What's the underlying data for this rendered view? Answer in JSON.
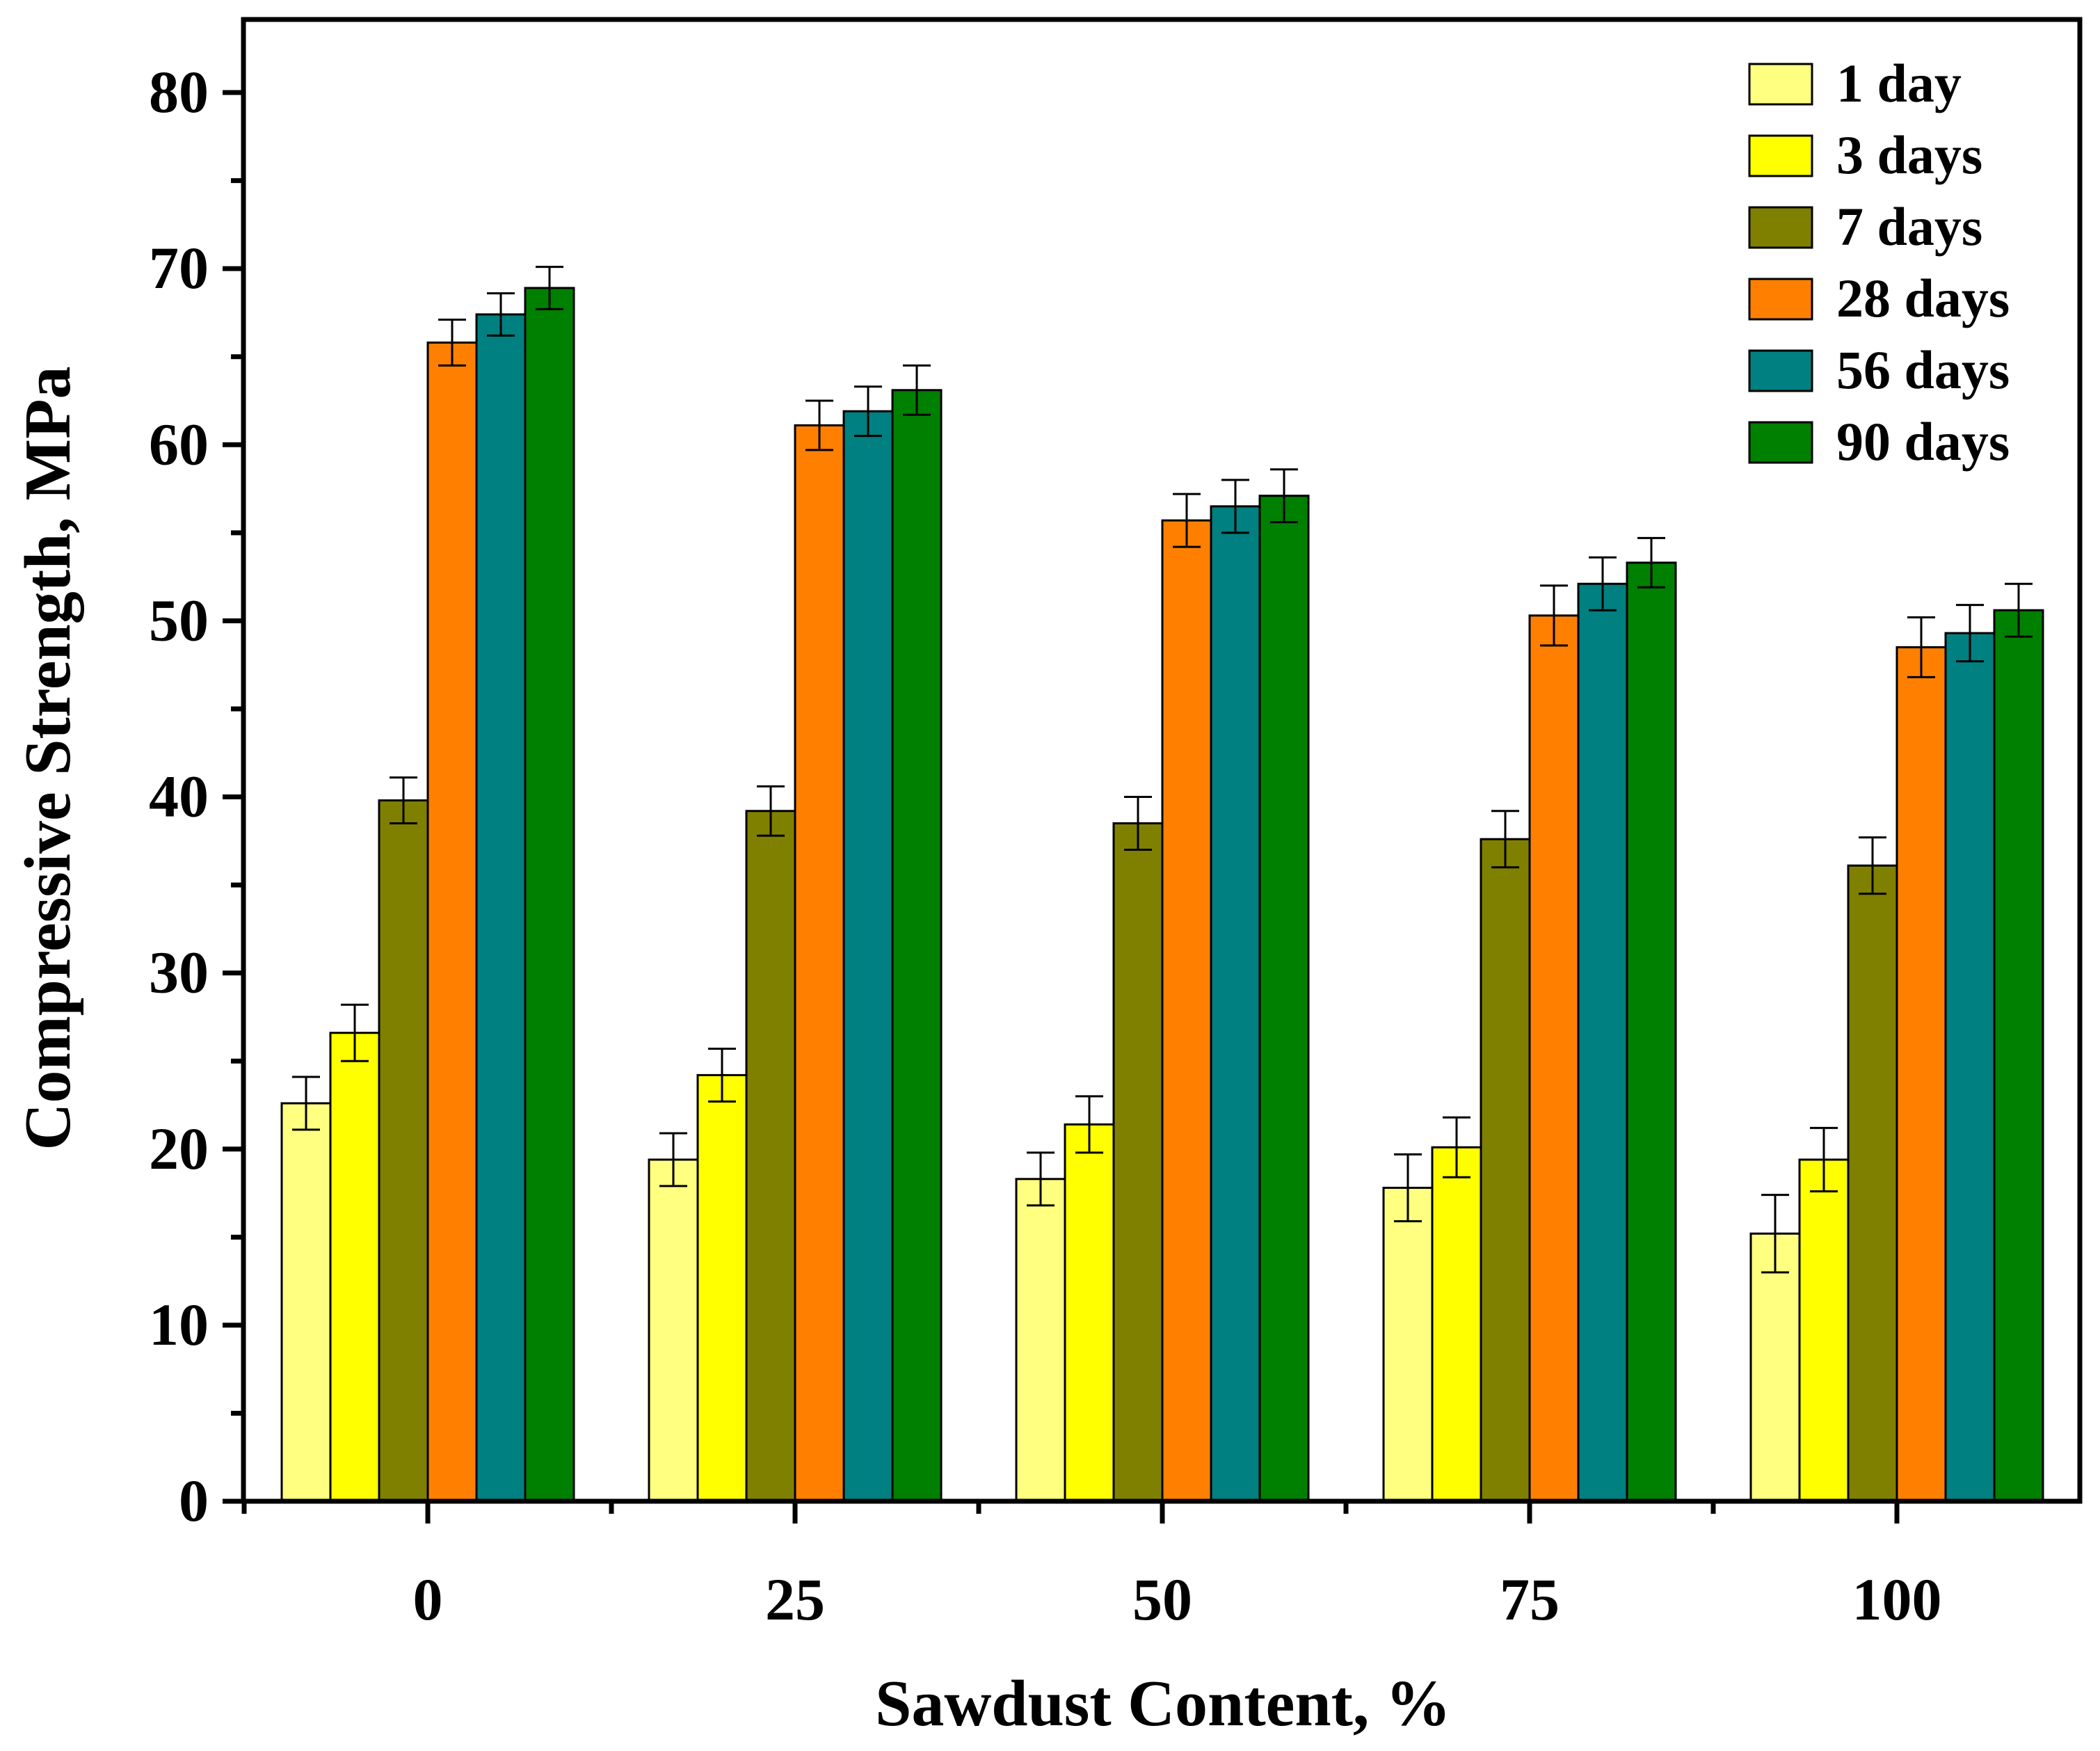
{
  "chart_data": {
    "type": "bar",
    "title": "",
    "xlabel": "Sawdust Content, %",
    "ylabel": "Compressive Strength, MPa",
    "categories": [
      "0",
      "25",
      "50",
      "75",
      "100"
    ],
    "ylim": [
      0,
      80
    ],
    "yticks": [
      0,
      10,
      20,
      30,
      40,
      50,
      60,
      70,
      80
    ],
    "grid": false,
    "legend_position": "top-right",
    "series": [
      {
        "name": "1 day",
        "color": "#FFFF80",
        "values": [
          22.6,
          19.4,
          18.3,
          17.8,
          15.2
        ],
        "errors": [
          1.5,
          1.5,
          1.5,
          1.9,
          2.2
        ]
      },
      {
        "name": "3 days",
        "color": "#FFFF00",
        "values": [
          26.6,
          24.2,
          21.4,
          20.1,
          19.4
        ],
        "errors": [
          1.6,
          1.5,
          1.6,
          1.7,
          1.8
        ]
      },
      {
        "name": "7 days",
        "color": "#808000",
        "values": [
          39.8,
          39.2,
          38.5,
          37.6,
          36.1
        ],
        "errors": [
          1.3,
          1.4,
          1.5,
          1.6,
          1.6
        ]
      },
      {
        "name": "28 days",
        "color": "#FF8000",
        "values": [
          65.8,
          61.1,
          55.7,
          50.3,
          48.5
        ],
        "errors": [
          1.3,
          1.4,
          1.5,
          1.7,
          1.7
        ]
      },
      {
        "name": "56 days",
        "color": "#008080",
        "values": [
          67.4,
          61.9,
          56.5,
          52.1,
          49.3
        ],
        "errors": [
          1.2,
          1.4,
          1.5,
          1.5,
          1.6
        ]
      },
      {
        "name": "90 days",
        "color": "#008000",
        "values": [
          68.9,
          63.1,
          57.1,
          53.3,
          50.6
        ],
        "errors": [
          1.2,
          1.4,
          1.5,
          1.4,
          1.5
        ]
      }
    ]
  }
}
